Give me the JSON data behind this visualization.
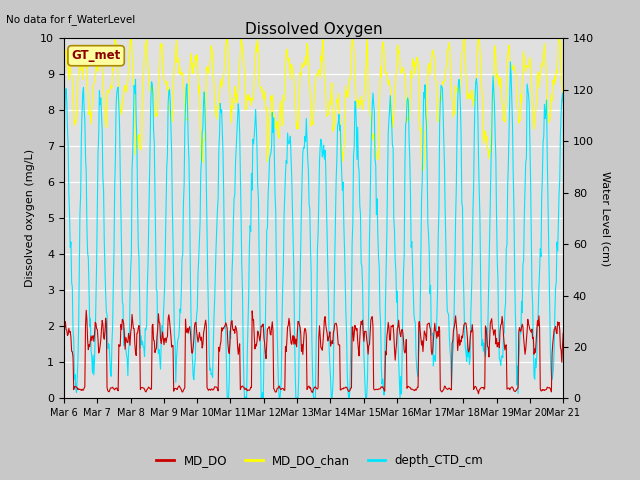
{
  "title": "Dissolved Oxygen",
  "top_left_text": "No data for f_WaterLevel",
  "box_label": "GT_met",
  "ylabel_left": "Dissolved oxygen (mg/L)",
  "ylabel_right": "Water Level (cm)",
  "ylim_left": [
    0,
    10.0
  ],
  "ylim_right": [
    0,
    140
  ],
  "yticks_left": [
    0.0,
    1.0,
    2.0,
    3.0,
    4.0,
    5.0,
    6.0,
    7.0,
    8.0,
    9.0,
    10.0
  ],
  "yticks_right": [
    0,
    20,
    40,
    60,
    80,
    100,
    120,
    140
  ],
  "x_tick_labels": [
    "Mar 6",
    "Mar 7",
    "Mar 8",
    "Mar 9",
    "Mar 10",
    "Mar 11",
    "Mar 12",
    "Mar 13",
    "Mar 14",
    "Mar 15",
    "Mar 16",
    "Mar 17",
    "Mar 18",
    "Mar 19",
    "Mar 20",
    "Mar 21"
  ],
  "legend_labels": [
    "MD_DO",
    "MD_DO_chan",
    "depth_CTD_cm"
  ],
  "color_MD_DO": "#cc0000",
  "color_MD_DO_chan": "#ffff00",
  "color_depth_CTD_cm": "#00e5ff",
  "background_color": "#c8c8c8",
  "plot_bg_color": "#e0e0e0",
  "grid_color": "#ffffff",
  "lw": 0.8
}
